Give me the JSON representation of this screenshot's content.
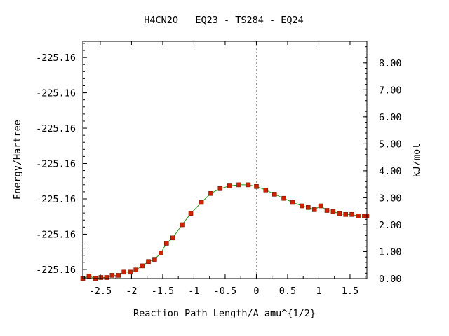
{
  "chart_data": {
    "type": "line",
    "title": "H4CN2O   EQ23 - TS284 - EQ24",
    "xlabel": "Reaction Path Length/A amu^{1/2}",
    "ylabel_left": "Energy/Hartree",
    "ylabel_right": "kJ/mol",
    "xlim": [
      -2.78,
      1.77
    ],
    "ylim_right": [
      0.0,
      8.8
    ],
    "x_ticks": [
      {
        "value": -2.5,
        "label": "-2.5"
      },
      {
        "value": -2.0,
        "label": "-2"
      },
      {
        "value": -1.5,
        "label": "-1.5"
      },
      {
        "value": -1.0,
        "label": "-1"
      },
      {
        "value": -0.5,
        "label": "-0.5"
      },
      {
        "value": 0.0,
        "label": "0"
      },
      {
        "value": 0.5,
        "label": "0.5"
      },
      {
        "value": 1.0,
        "label": "1"
      },
      {
        "value": 1.5,
        "label": "1.5"
      }
    ],
    "left_ticks": [
      {
        "value": 8.2,
        "label": "-225.16"
      },
      {
        "value": 6.89,
        "label": "-225.16"
      },
      {
        "value": 5.58,
        "label": "-225.16"
      },
      {
        "value": 4.27,
        "label": "-225.16"
      },
      {
        "value": 2.96,
        "label": "-225.16"
      },
      {
        "value": 1.65,
        "label": "-225.16"
      },
      {
        "value": 0.34,
        "label": "-225.16"
      }
    ],
    "right_ticks": [
      {
        "value": 0.0,
        "label": "0.00"
      },
      {
        "value": 1.0,
        "label": "1.00"
      },
      {
        "value": 2.0,
        "label": "2.00"
      },
      {
        "value": 3.0,
        "label": "3.00"
      },
      {
        "value": 4.0,
        "label": "4.00"
      },
      {
        "value": 5.0,
        "label": "5.00"
      },
      {
        "value": 6.0,
        "label": "6.00"
      },
      {
        "value": 7.0,
        "label": "7.00"
      },
      {
        "value": 8.0,
        "label": "8.00"
      }
    ],
    "ts_marker_x": 0.0,
    "series": [
      {
        "points": [
          [
            -2.78,
            0.0
          ],
          [
            -2.68,
            0.09
          ],
          [
            -2.58,
            0.0
          ],
          [
            -2.49,
            0.04
          ],
          [
            -2.4,
            0.04
          ],
          [
            -2.31,
            0.12
          ],
          [
            -2.21,
            0.12
          ],
          [
            -2.12,
            0.24
          ],
          [
            -2.02,
            0.24
          ],
          [
            -1.93,
            0.32
          ],
          [
            -1.83,
            0.47
          ],
          [
            -1.73,
            0.63
          ],
          [
            -1.63,
            0.71
          ],
          [
            -1.53,
            0.95
          ],
          [
            -1.44,
            1.31
          ],
          [
            -1.34,
            1.51
          ],
          [
            -1.19,
            2.0
          ],
          [
            -1.05,
            2.42
          ],
          [
            -0.88,
            2.83
          ],
          [
            -0.73,
            3.16
          ],
          [
            -0.58,
            3.34
          ],
          [
            -0.43,
            3.44
          ],
          [
            -0.28,
            3.48
          ],
          [
            -0.13,
            3.48
          ],
          [
            0.0,
            3.42
          ],
          [
            0.15,
            3.29
          ],
          [
            0.29,
            3.13
          ],
          [
            0.44,
            2.98
          ],
          [
            0.58,
            2.83
          ],
          [
            0.73,
            2.7
          ],
          [
            0.83,
            2.64
          ],
          [
            0.93,
            2.56
          ],
          [
            1.03,
            2.7
          ],
          [
            1.13,
            2.53
          ],
          [
            1.23,
            2.49
          ],
          [
            1.33,
            2.41
          ],
          [
            1.43,
            2.38
          ],
          [
            1.53,
            2.38
          ],
          [
            1.63,
            2.32
          ],
          [
            1.73,
            2.32
          ],
          [
            1.77,
            2.32
          ]
        ]
      }
    ],
    "colors": {
      "line": "#1a9c1a",
      "marker": "#cc2200",
      "axis": "#000000",
      "ts_line": "#999999"
    }
  }
}
